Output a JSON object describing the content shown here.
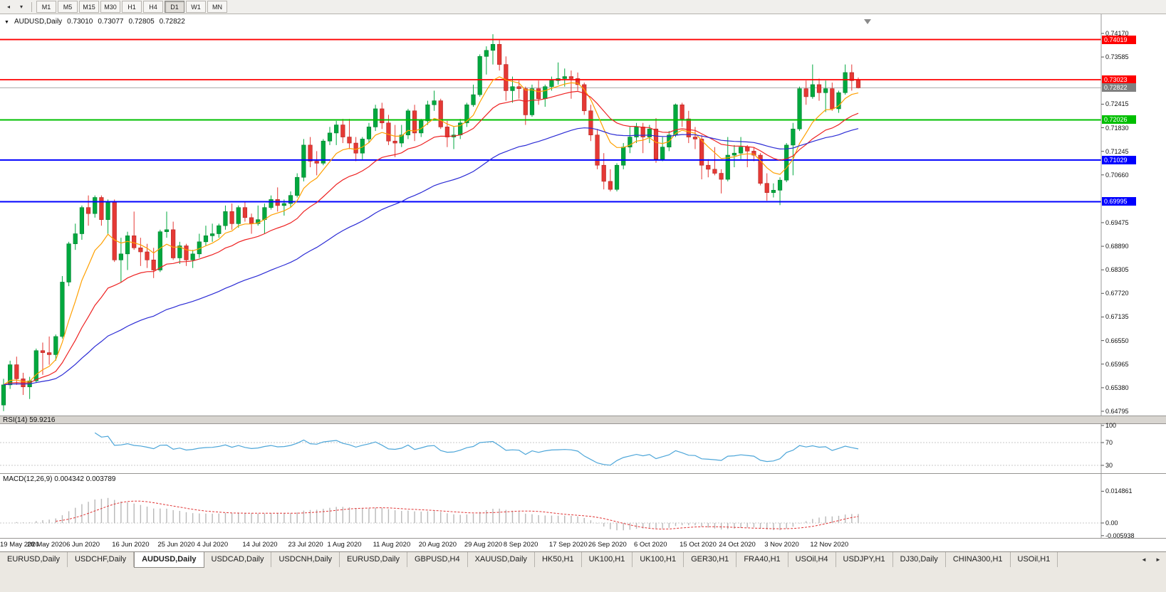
{
  "toolbar": {
    "icons": [
      {
        "name": "chart-shift-icon",
        "glyph": "◂"
      },
      {
        "name": "dropdown-icon",
        "glyph": "▾"
      }
    ],
    "timeframes": [
      {
        "label": "M1",
        "active": false
      },
      {
        "label": "M5",
        "active": false
      },
      {
        "label": "M15",
        "active": false
      },
      {
        "label": "M30",
        "active": false
      },
      {
        "label": "H1",
        "active": false
      },
      {
        "label": "H4",
        "active": false
      },
      {
        "label": "D1",
        "active": true
      },
      {
        "label": "W1",
        "active": false
      },
      {
        "label": "MN",
        "active": false
      }
    ]
  },
  "chart": {
    "symbol": "AUDUSD,Daily",
    "open": "0.73010",
    "high": "0.73077",
    "low": "0.72805",
    "close": "0.72822",
    "current_tag": "0.72822",
    "caret": "▼"
  },
  "price_axis": {
    "labels": [
      "0.74170",
      "0.73585",
      "0.72415",
      "0.71830",
      "0.71245",
      "0.70660",
      "0.69475",
      "0.68890",
      "0.68305",
      "0.67720",
      "0.67135",
      "0.66550",
      "0.65965",
      "0.65380",
      "0.64795"
    ]
  },
  "rsi": {
    "label": "RSI(14) 59.9216",
    "levels": [
      "100",
      "70",
      "30"
    ]
  },
  "macd": {
    "label": "MACD(12,26,9) 0.004342 0.003789",
    "axis": [
      "0.014861",
      "0.00",
      "-0.005938"
    ]
  },
  "colors": {
    "up": "#00a83e",
    "up_border": "#00812f",
    "down": "#e53935",
    "down_border": "#b32421",
    "rsi": "#4da6d9",
    "macd_hist": "#b8b8b8",
    "macd_signal": "#e03535",
    "grid": "#c9c9c9",
    "current_line": "#a8a8a8",
    "tag_current": "#808080"
  },
  "chart_data": {
    "type": "candlestick",
    "symbol": "AUDUSD",
    "timeframe": "Daily",
    "current_price": 0.72822,
    "y_axis_range": [
      0.64795,
      0.7417
    ],
    "hlines": [
      {
        "price": 0.74019,
        "color": "#ff0000",
        "label": "0.74019",
        "width": 1.8
      },
      {
        "price": 0.73023,
        "color": "#ff0000",
        "label": "0.73023",
        "width": 1.8
      },
      {
        "price": 0.72026,
        "color": "#00bf00",
        "label": "0.72026",
        "width": 2
      },
      {
        "price": 0.71029,
        "color": "#0000ff",
        "label": "0.71029",
        "width": 2
      },
      {
        "price": 0.69995,
        "color": "#0000ff",
        "label": "0.69995",
        "width": 2
      }
    ],
    "moving_averages": [
      {
        "name": "fast",
        "period": 8,
        "color": "#ffa000"
      },
      {
        "name": "medium",
        "period": 20,
        "color": "#ee2222"
      },
      {
        "name": "slow",
        "period": 50,
        "color": "#2b2bd5"
      }
    ],
    "rsi": {
      "period": 14,
      "value": 59.9216,
      "levels": [
        100,
        70,
        30
      ]
    },
    "macd": {
      "fast": 12,
      "slow": 26,
      "signal": 9,
      "value": 0.004342,
      "signal_value": 0.003789,
      "axis_values": [
        0.014861,
        0.0,
        -0.005938
      ]
    },
    "x_labels": [
      {
        "text": "19 May 2020",
        "index": 0
      },
      {
        "text": "28 May 2020",
        "index": 7
      },
      {
        "text": "6 Jun 2020",
        "index": 13
      },
      {
        "text": "16 Jun 2020",
        "index": 20
      },
      {
        "text": "25 Jun 2020",
        "index": 27
      },
      {
        "text": "4 Jul 2020",
        "index": 33
      },
      {
        "text": "14 Jul 2020",
        "index": 40
      },
      {
        "text": "23 Jul 2020",
        "index": 47
      },
      {
        "text": "1 Aug 2020",
        "index": 53
      },
      {
        "text": "11 Aug 2020",
        "index": 60
      },
      {
        "text": "20 Aug 2020",
        "index": 67
      },
      {
        "text": "29 Aug 2020",
        "index": 74
      },
      {
        "text": "8 Sep 2020",
        "index": 80
      },
      {
        "text": "17 Sep 2020",
        "index": 87
      },
      {
        "text": "26 Sep 2020",
        "index": 93
      },
      {
        "text": "6 Oct 2020",
        "index": 100
      },
      {
        "text": "15 Oct 2020",
        "index": 107
      },
      {
        "text": "24 Oct 2020",
        "index": 113
      },
      {
        "text": "3 Nov 2020",
        "index": 120
      },
      {
        "text": "12 Nov 2020",
        "index": 127
      }
    ],
    "candles": [
      [
        0.6495,
        0.656,
        0.648,
        0.6545
      ],
      [
        0.6545,
        0.6605,
        0.6535,
        0.6595
      ],
      [
        0.6595,
        0.6615,
        0.6545,
        0.656
      ],
      [
        0.656,
        0.6575,
        0.652,
        0.654
      ],
      [
        0.654,
        0.6565,
        0.651,
        0.6555
      ],
      [
        0.6555,
        0.6635,
        0.655,
        0.663
      ],
      [
        0.663,
        0.665,
        0.657,
        0.6625
      ],
      [
        0.6625,
        0.6665,
        0.6595,
        0.662
      ],
      [
        0.662,
        0.667,
        0.6605,
        0.6665
      ],
      [
        0.6665,
        0.6815,
        0.666,
        0.68
      ],
      [
        0.68,
        0.69,
        0.679,
        0.6895
      ],
      [
        0.6895,
        0.6945,
        0.688,
        0.692
      ],
      [
        0.692,
        0.699,
        0.6905,
        0.6985
      ],
      [
        0.6985,
        0.7015,
        0.694,
        0.697
      ],
      [
        0.697,
        0.7015,
        0.696,
        0.701
      ],
      [
        0.701,
        0.7015,
        0.694,
        0.6955
      ],
      [
        0.6955,
        0.7005,
        0.692,
        0.7
      ],
      [
        0.7,
        0.7005,
        0.685,
        0.6855
      ],
      [
        0.6855,
        0.691,
        0.68,
        0.687
      ],
      [
        0.687,
        0.6925,
        0.683,
        0.6915
      ],
      [
        0.6915,
        0.6975,
        0.688,
        0.6885
      ],
      [
        0.6885,
        0.691,
        0.684,
        0.6875
      ],
      [
        0.6875,
        0.6895,
        0.6835,
        0.6855
      ],
      [
        0.6855,
        0.6885,
        0.681,
        0.683
      ],
      [
        0.683,
        0.693,
        0.6825,
        0.6925
      ],
      [
        0.6925,
        0.6975,
        0.691,
        0.693
      ],
      [
        0.693,
        0.695,
        0.6855,
        0.686
      ],
      [
        0.686,
        0.69,
        0.6845,
        0.689
      ],
      [
        0.689,
        0.6895,
        0.684,
        0.6855
      ],
      [
        0.6855,
        0.688,
        0.6835,
        0.687
      ],
      [
        0.687,
        0.692,
        0.686,
        0.69
      ],
      [
        0.69,
        0.694,
        0.689,
        0.6915
      ],
      [
        0.6915,
        0.6945,
        0.69,
        0.692
      ],
      [
        0.692,
        0.6945,
        0.691,
        0.694
      ],
      [
        0.694,
        0.699,
        0.693,
        0.6975
      ],
      [
        0.6975,
        0.6995,
        0.693,
        0.6945
      ],
      [
        0.6945,
        0.699,
        0.6935,
        0.6985
      ],
      [
        0.6985,
        0.7,
        0.695,
        0.696
      ],
      [
        0.696,
        0.697,
        0.692,
        0.6945
      ],
      [
        0.6945,
        0.699,
        0.694,
        0.6955
      ],
      [
        0.6955,
        0.6995,
        0.692,
        0.6985
      ],
      [
        0.6985,
        0.7015,
        0.698,
        0.7005
      ],
      [
        0.7005,
        0.7035,
        0.6975,
        0.699
      ],
      [
        0.699,
        0.7005,
        0.6965,
        0.6995
      ],
      [
        0.6995,
        0.7025,
        0.6985,
        0.7015
      ],
      [
        0.7015,
        0.707,
        0.701,
        0.706
      ],
      [
        0.706,
        0.7155,
        0.705,
        0.714
      ],
      [
        0.714,
        0.716,
        0.7085,
        0.71
      ],
      [
        0.71,
        0.7125,
        0.7065,
        0.7095
      ],
      [
        0.7095,
        0.7155,
        0.709,
        0.715
      ],
      [
        0.715,
        0.7185,
        0.714,
        0.717
      ],
      [
        0.717,
        0.72,
        0.714,
        0.719
      ],
      [
        0.719,
        0.7205,
        0.7145,
        0.716
      ],
      [
        0.716,
        0.7205,
        0.713,
        0.7145
      ],
      [
        0.7145,
        0.716,
        0.71,
        0.712
      ],
      [
        0.712,
        0.716,
        0.7105,
        0.7155
      ],
      [
        0.7155,
        0.7195,
        0.7145,
        0.7185
      ],
      [
        0.7185,
        0.724,
        0.7175,
        0.723
      ],
      [
        0.723,
        0.7245,
        0.718,
        0.7195
      ],
      [
        0.7195,
        0.7215,
        0.714,
        0.715
      ],
      [
        0.715,
        0.719,
        0.711,
        0.7145
      ],
      [
        0.7145,
        0.719,
        0.7135,
        0.7165
      ],
      [
        0.7165,
        0.723,
        0.7155,
        0.7225
      ],
      [
        0.7225,
        0.724,
        0.715,
        0.717
      ],
      [
        0.717,
        0.7205,
        0.716,
        0.72
      ],
      [
        0.72,
        0.725,
        0.719,
        0.724
      ],
      [
        0.724,
        0.7275,
        0.7225,
        0.725
      ],
      [
        0.725,
        0.7255,
        0.718,
        0.7185
      ],
      [
        0.7185,
        0.72,
        0.7135,
        0.716
      ],
      [
        0.716,
        0.7185,
        0.713,
        0.7165
      ],
      [
        0.7165,
        0.7205,
        0.7155,
        0.7195
      ],
      [
        0.7195,
        0.7245,
        0.7185,
        0.724
      ],
      [
        0.724,
        0.729,
        0.7235,
        0.7265
      ],
      [
        0.7265,
        0.7365,
        0.726,
        0.736
      ],
      [
        0.736,
        0.7385,
        0.7315,
        0.7375
      ],
      [
        0.7375,
        0.7415,
        0.734,
        0.739
      ],
      [
        0.739,
        0.74,
        0.7325,
        0.734
      ],
      [
        0.734,
        0.736,
        0.725,
        0.7275
      ],
      [
        0.7275,
        0.731,
        0.7245,
        0.7285
      ],
      [
        0.7285,
        0.73,
        0.7255,
        0.728
      ],
      [
        0.728,
        0.7285,
        0.719,
        0.7215
      ],
      [
        0.7215,
        0.729,
        0.721,
        0.728
      ],
      [
        0.728,
        0.73,
        0.724,
        0.7255
      ],
      [
        0.7255,
        0.729,
        0.7235,
        0.7285
      ],
      [
        0.7285,
        0.731,
        0.7275,
        0.73
      ],
      [
        0.73,
        0.7345,
        0.729,
        0.7305
      ],
      [
        0.7305,
        0.733,
        0.7285,
        0.731
      ],
      [
        0.731,
        0.7325,
        0.7255,
        0.7305
      ],
      [
        0.7305,
        0.732,
        0.7275,
        0.729
      ],
      [
        0.729,
        0.7295,
        0.7215,
        0.7225
      ],
      [
        0.7225,
        0.724,
        0.715,
        0.7165
      ],
      [
        0.7165,
        0.718,
        0.708,
        0.709
      ],
      [
        0.709,
        0.712,
        0.703,
        0.705
      ],
      [
        0.705,
        0.708,
        0.7025,
        0.703
      ],
      [
        0.703,
        0.7095,
        0.7025,
        0.709
      ],
      [
        0.709,
        0.7145,
        0.708,
        0.7135
      ],
      [
        0.7135,
        0.7185,
        0.712,
        0.716
      ],
      [
        0.716,
        0.7195,
        0.7145,
        0.7185
      ],
      [
        0.7185,
        0.7195,
        0.712,
        0.716
      ],
      [
        0.716,
        0.719,
        0.7145,
        0.718
      ],
      [
        0.718,
        0.7207,
        0.7096,
        0.7105
      ],
      [
        0.7105,
        0.716,
        0.71,
        0.7135
      ],
      [
        0.7135,
        0.7175,
        0.7125,
        0.7165
      ],
      [
        0.7165,
        0.7243,
        0.716,
        0.724
      ],
      [
        0.724,
        0.7245,
        0.7185,
        0.7205
      ],
      [
        0.7205,
        0.7225,
        0.7145,
        0.716
      ],
      [
        0.716,
        0.7185,
        0.713,
        0.7155
      ],
      [
        0.7155,
        0.7165,
        0.7055,
        0.709
      ],
      [
        0.709,
        0.7105,
        0.706,
        0.708
      ],
      [
        0.708,
        0.7135,
        0.7065,
        0.707
      ],
      [
        0.707,
        0.708,
        0.702,
        0.7055
      ],
      [
        0.7055,
        0.716,
        0.705,
        0.7115
      ],
      [
        0.7115,
        0.714,
        0.7085,
        0.712
      ],
      [
        0.712,
        0.716,
        0.7105,
        0.7135
      ],
      [
        0.7135,
        0.714,
        0.7085,
        0.7125
      ],
      [
        0.7125,
        0.7135,
        0.71,
        0.7115
      ],
      [
        0.7115,
        0.712,
        0.704,
        0.7045
      ],
      [
        0.7045,
        0.707,
        0.7002,
        0.7022
      ],
      [
        0.7022,
        0.7045,
        0.701,
        0.7028
      ],
      [
        0.7028,
        0.706,
        0.6991,
        0.7053
      ],
      [
        0.7053,
        0.7145,
        0.7048,
        0.714
      ],
      [
        0.714,
        0.7195,
        0.7065,
        0.718
      ],
      [
        0.718,
        0.7285,
        0.7175,
        0.728
      ],
      [
        0.728,
        0.73,
        0.724,
        0.726
      ],
      [
        0.726,
        0.734,
        0.7255,
        0.729
      ],
      [
        0.729,
        0.7305,
        0.725,
        0.727
      ],
      [
        0.727,
        0.73,
        0.7222,
        0.728
      ],
      [
        0.728,
        0.7295,
        0.7225,
        0.723
      ],
      [
        0.723,
        0.7275,
        0.722,
        0.727
      ],
      [
        0.727,
        0.734,
        0.7265,
        0.732
      ],
      [
        0.732,
        0.734,
        0.7275,
        0.73
      ],
      [
        0.7301,
        0.73077,
        0.72805,
        0.72822
      ]
    ]
  },
  "bottom_tabs": {
    "scroll_left": "◄",
    "scroll_right": "►",
    "items": [
      {
        "label": "EURUSD,Daily",
        "active": false
      },
      {
        "label": "USDCHF,Daily",
        "active": false
      },
      {
        "label": "AUDUSD,Daily",
        "active": true
      },
      {
        "label": "USDCAD,Daily",
        "active": false
      },
      {
        "label": "USDCNH,Daily",
        "active": false
      },
      {
        "label": "EURUSD,Daily",
        "active": false
      },
      {
        "label": "GBPUSD,H4",
        "active": false
      },
      {
        "label": "XAUUSD,Daily",
        "active": false
      },
      {
        "label": "HK50,H1",
        "active": false
      },
      {
        "label": "UK100,H1",
        "active": false
      },
      {
        "label": "UK100,H1",
        "active": false
      },
      {
        "label": "GER30,H1",
        "active": false
      },
      {
        "label": "FRA40,H1",
        "active": false
      },
      {
        "label": "USOil,H4",
        "active": false
      },
      {
        "label": "USDJPY,H1",
        "active": false
      },
      {
        "label": "DJ30,Daily",
        "active": false
      },
      {
        "label": "CHINA300,H1",
        "active": false
      },
      {
        "label": "USOil,H1",
        "active": false
      }
    ]
  }
}
